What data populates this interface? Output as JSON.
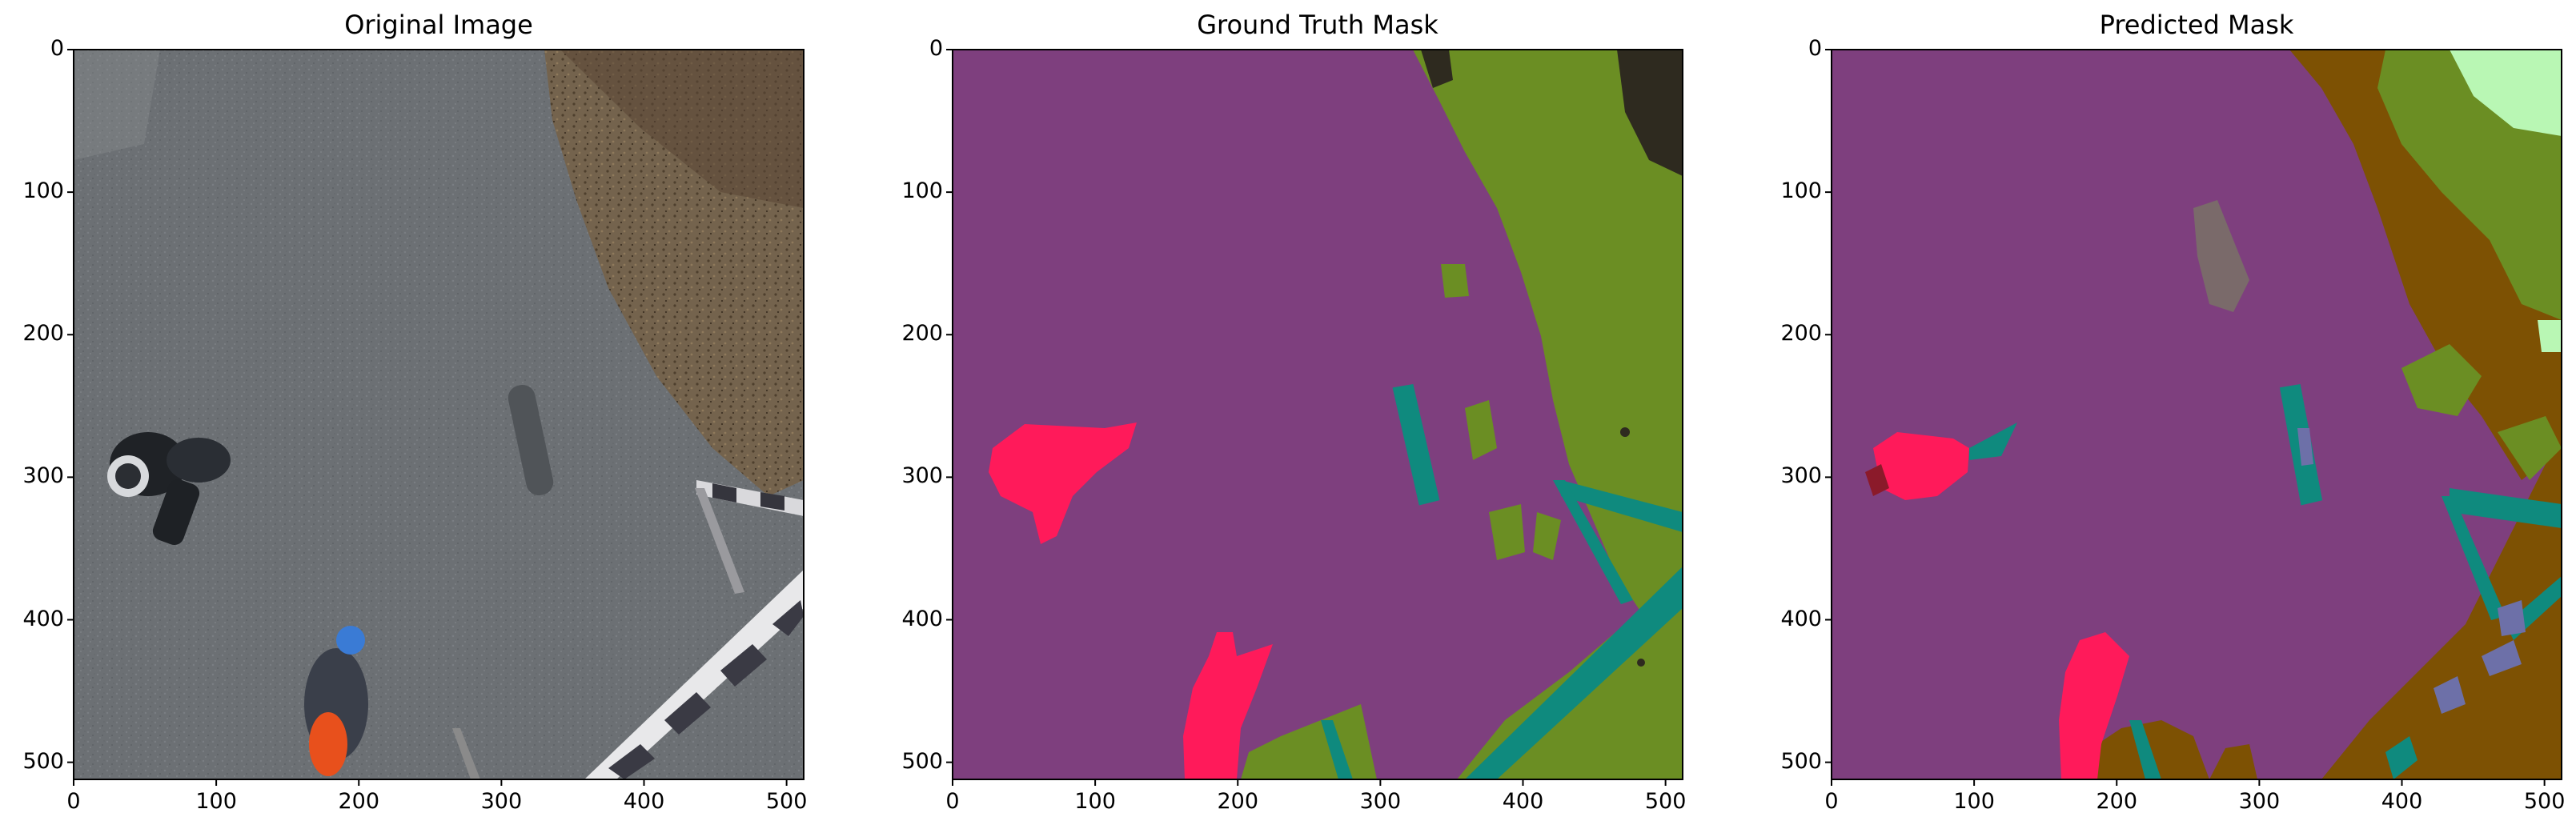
{
  "panels": [
    {
      "title": "Original Image"
    },
    {
      "title": "Ground Truth Mask"
    },
    {
      "title": "Predicted Mask"
    }
  ],
  "axes": {
    "x_ticks": [
      "0",
      "100",
      "200",
      "300",
      "400",
      "500"
    ],
    "y_ticks": [
      "0",
      "100",
      "200",
      "300",
      "400",
      "500"
    ]
  },
  "colors": {
    "road": "#7e3f7e",
    "vegetation": "#6b8e23",
    "person": "#ff1a5a",
    "pole": "#0f8a7e",
    "dirt": "#7d5103",
    "dark_object": "#2e2a1f",
    "light_green": "#b9f7b4",
    "gray_object": "#7a6a6a",
    "slate": "#6d70a8",
    "asphalt": "#6a6d70",
    "ground_brown": "#74634d"
  }
}
